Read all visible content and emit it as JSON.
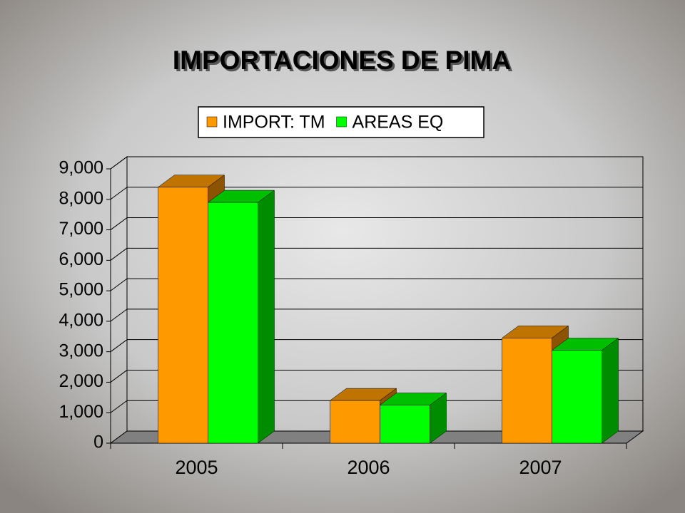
{
  "chart_data": {
    "type": "bar3d",
    "title": "IMPORTACIONES DE PIMA",
    "categories": [
      "2005",
      "2006",
      "2007"
    ],
    "series": [
      {
        "name": "IMPORT: TM",
        "color": "#ff9900",
        "values": [
          8400,
          1400,
          3450
        ]
      },
      {
        "name": "AREAS EQ",
        "color": "#00ff00",
        "values": [
          7900,
          1250,
          3050
        ]
      }
    ],
    "ylim": [
      0,
      9000
    ],
    "yticks": [
      0,
      {
        "value": 1000,
        "label": "1,000"
      },
      {
        "value": 2000,
        "label": "2,000"
      },
      {
        "value": 3000,
        "label": "3,000"
      },
      {
        "value": 4000,
        "label": "4,000"
      },
      {
        "value": 5000,
        "label": "5,000"
      },
      {
        "value": 6000,
        "label": "6,000"
      },
      {
        "value": 7000,
        "label": "7,000"
      },
      {
        "value": 8000,
        "label": "8,000"
      },
      {
        "value": 9000,
        "label": "9,000"
      }
    ],
    "grid": true,
    "legend": "top"
  }
}
